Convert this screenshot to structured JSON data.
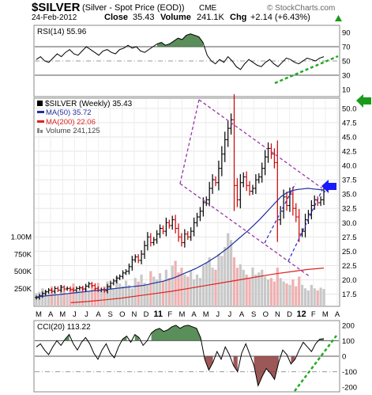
{
  "header": {
    "symbol": "$SILVER",
    "description": "(Silver - Spot Price (EOD))",
    "exchange": "CME",
    "watermark": "© StockCharts.com",
    "date": "24-Feb-2012",
    "close_label": "Close",
    "close_value": "35.43",
    "volume_label": "Volume",
    "volume_value": "241.1K",
    "chg_label": "Chg",
    "chg_value": "+2.14 (+6.43%)",
    "chg_arrow_icon": "up-triangle-icon"
  },
  "colors": {
    "up_bar": "#000000",
    "down_bar": "#cc0000",
    "ma50": "#1f2f9e",
    "ma200": "#dd2222",
    "volume_up": "#c8c8c8",
    "volume_down": "#f0b0b0",
    "indicator_fill": "#3d7a3d",
    "channel": "#9933aa",
    "flag": "#3333cc",
    "trendline": "#22aa22",
    "arrow_blue": "#1a1aff",
    "arrow_green": "#1a9a1a"
  },
  "chart_data": [
    {
      "type": "line",
      "panel": "rsi",
      "label": "RSI(14)",
      "current_value": "55.96",
      "y_ticks": [
        "90",
        "70",
        "50",
        "30",
        "10"
      ],
      "ylim": [
        0,
        100
      ],
      "reference_lines": [
        70,
        30,
        50
      ],
      "series": [
        {
          "name": "RSI(14)",
          "values": [
            52,
            56,
            50,
            48,
            54,
            60,
            56,
            62,
            66,
            60,
            58,
            64,
            70,
            66,
            62,
            58,
            64,
            66,
            62,
            60,
            66,
            68,
            72,
            68,
            70,
            64,
            62,
            66,
            70,
            74,
            76,
            72,
            74,
            78,
            82,
            80,
            86,
            88,
            86,
            84,
            76,
            58,
            50,
            46,
            52,
            48,
            56,
            50,
            42,
            38,
            46,
            52,
            48,
            44,
            42,
            48,
            52,
            46,
            42,
            48,
            54,
            52,
            48,
            46,
            50,
            54,
            52,
            50,
            54,
            56
          ]
        }
      ],
      "annotations": [
        {
          "type": "support-trendline",
          "style": "dashed"
        }
      ]
    },
    {
      "type": "candlestick",
      "panel": "price",
      "title": "$SILVER (Weekly) 35.43",
      "x_ticks": [
        "M",
        "A",
        "M",
        "J",
        "J",
        "A",
        "S",
        "O",
        "N",
        "D",
        "11",
        "F",
        "M",
        "A",
        "M",
        "J",
        "J",
        "A",
        "S",
        "O",
        "N",
        "D",
        "12",
        "F",
        "M",
        "A"
      ],
      "y_ticks": [
        "50.0",
        "47.5",
        "45.0",
        "42.5",
        "40.0",
        "37.5",
        "35.0",
        "32.5",
        "30.0",
        "27.5",
        "25.0",
        "22.5",
        "20.0",
        "17.5"
      ],
      "ylim": [
        15.5,
        51.5
      ],
      "volume_ticks": [
        "1.00M",
        "750K",
        "500K",
        "250K"
      ],
      "legend": [
        {
          "label": "MA(50)",
          "value": "35.72"
        },
        {
          "label": "MA(200)",
          "value": "22.06"
        },
        {
          "label": "Volume",
          "value": "241,125"
        }
      ],
      "closes": [
        16.9,
        17.2,
        17.6,
        17.9,
        18.2,
        18.0,
        18.5,
        18.2,
        18.7,
        18.4,
        18.5,
        18.3,
        18.2,
        18.5,
        18.6,
        18.4,
        18.9,
        19.3,
        19.0,
        18.5,
        18.2,
        18.3,
        18.1,
        18.8,
        19.4,
        19.8,
        20.3,
        20.6,
        21.2,
        21.5,
        22.3,
        23.5,
        24.0,
        23.4,
        24.5,
        26.0,
        27.5,
        26.5,
        27.0,
        28.0,
        29.0,
        28.5,
        30.0,
        29.5,
        30.5,
        29.0,
        27.5,
        26.5,
        28.0,
        27.5,
        28.5,
        30.0,
        31.0,
        32.0,
        33.5,
        34.0,
        36.0,
        37.5,
        37.0,
        39.5,
        42.0,
        44.5,
        46.5,
        48.0,
        36.5,
        34.0,
        37.0,
        38.0,
        36.5,
        35.5,
        36.0,
        37.5,
        38.0,
        39.5,
        41.5,
        43.0,
        42.0,
        40.5,
        30.5,
        32.0,
        34.5,
        33.0,
        35.0,
        32.5,
        31.0,
        28.0,
        28.5,
        30.5,
        31.5,
        33.0,
        34.0,
        33.5,
        34.0,
        35.43
      ],
      "ma50": [
        17.0,
        17.1,
        17.2,
        17.3,
        17.4,
        17.5,
        17.6,
        17.7,
        17.8,
        17.9,
        18.0,
        18.1,
        18.2,
        18.3,
        18.4,
        18.5,
        18.6,
        18.7,
        18.8,
        18.9,
        19.0,
        19.2,
        19.4,
        19.6,
        19.8,
        20.1,
        20.4,
        20.8,
        21.2,
        21.6,
        22.0,
        22.5,
        23.0,
        23.6,
        24.2,
        24.9,
        25.6,
        26.4,
        27.2,
        28.0,
        28.8,
        29.7,
        30.6,
        31.6,
        32.6,
        33.6,
        34.6,
        35.2,
        35.6,
        35.8,
        35.9,
        36.0,
        35.9,
        35.8,
        35.72
      ],
      "ma200": [
        16.0,
        16.2,
        16.5,
        16.8,
        17.2,
        17.6,
        18.0,
        18.5,
        19.0,
        19.5,
        20.0,
        20.5,
        21.0,
        21.4,
        21.8,
        22.06
      ],
      "volume": [
        0.18,
        0.2,
        0.25,
        0.22,
        0.17,
        0.28,
        0.2,
        0.15,
        0.3,
        0.22,
        0.17,
        0.25,
        0.32,
        0.2,
        0.22,
        0.28,
        0.24,
        0.2,
        0.3,
        0.25,
        0.33,
        0.22,
        0.28,
        0.35,
        0.3,
        0.25,
        0.42,
        0.32,
        0.28,
        0.36,
        0.3,
        0.25,
        0.4,
        0.35,
        0.45,
        0.33,
        0.3,
        0.5,
        0.42,
        0.38,
        0.47,
        0.35,
        0.52,
        0.4,
        0.58,
        0.65,
        0.48,
        0.55,
        0.45,
        0.42,
        0.5,
        0.38,
        0.45,
        0.4,
        0.58,
        0.62,
        0.7,
        0.55,
        0.52,
        0.75,
        0.72,
        0.85,
        1.05,
        0.95,
        0.7,
        0.55,
        0.6,
        0.52,
        0.45,
        0.4,
        0.55,
        0.45,
        0.48,
        0.52,
        0.42,
        0.38,
        0.4,
        0.35,
        0.55,
        0.4,
        0.35,
        0.32,
        0.3,
        0.38,
        0.28,
        0.42,
        0.3,
        0.25,
        0.22,
        0.3,
        0.25,
        0.22,
        0.26,
        0.24
      ],
      "annotations": [
        {
          "type": "descending-channel",
          "style": "dashed"
        },
        {
          "type": "bull-flag",
          "style": "dashed"
        },
        {
          "type": "arrow",
          "color": "blue",
          "points_to": 35.72
        },
        {
          "type": "arrow",
          "color": "green",
          "points_to": 50.0
        }
      ]
    },
    {
      "type": "line",
      "panel": "cci",
      "label": "CCI(20)",
      "current_value": "113.22",
      "y_ticks": [
        "200",
        "100",
        "0",
        "-100",
        "-200"
      ],
      "ylim": [
        -230,
        230
      ],
      "reference_lines": [
        100,
        0,
        -100
      ],
      "series": [
        {
          "name": "CCI(20)",
          "values": [
            60,
            80,
            40,
            10,
            60,
            100,
            70,
            110,
            140,
            80,
            40,
            90,
            120,
            80,
            20,
            -20,
            40,
            80,
            20,
            -10,
            60,
            110,
            130,
            90,
            140,
            120,
            70,
            100,
            150,
            170,
            180,
            160,
            170,
            190,
            200,
            180,
            195,
            200,
            190,
            180,
            120,
            -20,
            -90,
            -40,
            30,
            -20,
            60,
            10,
            -60,
            -100,
            20,
            80,
            10,
            -60,
            -190,
            -130,
            -80,
            -110,
            -150,
            -40,
            40,
            10,
            -50,
            -20,
            40,
            90,
            60,
            30,
            80,
            110,
            113
          ]
        }
      ],
      "annotations": [
        {
          "type": "support-trendline",
          "style": "dashed"
        }
      ]
    }
  ]
}
